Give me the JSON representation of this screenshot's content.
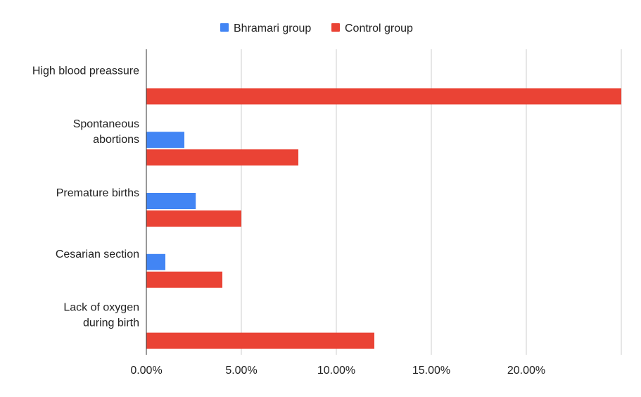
{
  "chart_data": {
    "type": "bar",
    "orientation": "horizontal",
    "title": "",
    "xlabel": "",
    "ylabel": "",
    "categories": [
      "High blood preassure",
      "Spontaneous abortions",
      "Premature births",
      "Cesarian section",
      "Lack of oxygen during birth"
    ],
    "category_label_lines": [
      [
        "High blood preassure"
      ],
      [
        "Spontaneous",
        "abortions"
      ],
      [
        "Premature births"
      ],
      [
        "Cesarian section"
      ],
      [
        "Lack of oxygen",
        "during birth"
      ]
    ],
    "series": [
      {
        "name": "Bhramari group",
        "color": "#4285f4",
        "values": [
          0,
          2.0,
          2.6,
          1.0,
          0
        ]
      },
      {
        "name": "Control group",
        "color": "#ea4335",
        "values": [
          25.0,
          8.0,
          5.0,
          4.0,
          12.0
        ]
      }
    ],
    "xlim": [
      0,
      25
    ],
    "xticks": [
      0,
      5,
      10,
      15,
      20
    ],
    "xtick_labels": [
      "0.00%",
      "5.00%",
      "10.00%",
      "15.00%",
      "20.00%"
    ],
    "grid": true,
    "legend_position": "top"
  }
}
